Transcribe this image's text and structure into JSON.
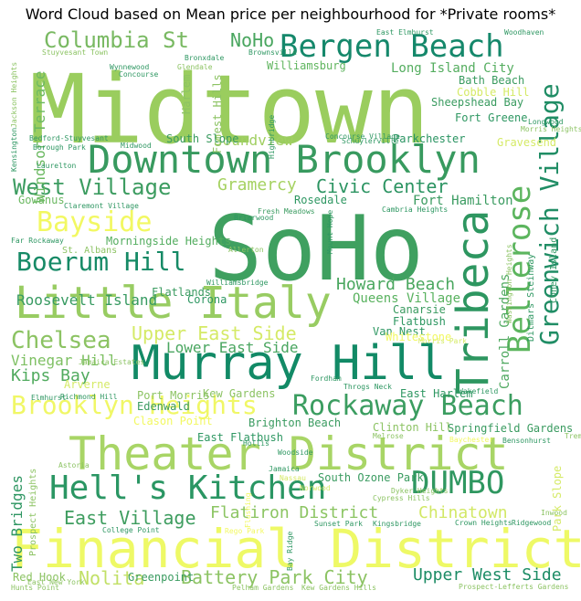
{
  "chart_data": {
    "type": "wordcloud",
    "title": "Word Cloud based on Mean price per neighbourhood for *Private rooms*",
    "colormap": "summer (green to yellow)",
    "words": [
      {
        "text": "Midtown",
        "color": "#9acd5e"
      },
      {
        "text": "SoHo",
        "color": "#3fa060"
      },
      {
        "text": "Financial District",
        "color": "#eef966"
      },
      {
        "text": "Theater District",
        "color": "#a8d566"
      },
      {
        "text": "Downtown Brooklyn",
        "color": "#389a5f"
      },
      {
        "text": "Little Italy",
        "color": "#98cc62"
      },
      {
        "text": "Murray Hill",
        "color": "#128a66"
      },
      {
        "text": "Bergen Beach",
        "color": "#15886b"
      },
      {
        "text": "Tribeca",
        "color": "#2d9660"
      },
      {
        "text": "Hell's Kitchen",
        "color": "#2a9663"
      },
      {
        "text": "Rockaway Beach",
        "color": "#3b9d60"
      },
      {
        "text": "DUMBO",
        "color": "#2f9760"
      },
      {
        "text": "Greenwich Village",
        "color": "#208d65"
      },
      {
        "text": "Bellerose",
        "color": "#5cb55e"
      },
      {
        "text": "Brooklyn Heights",
        "color": "#f0f766"
      },
      {
        "text": "Columbia St",
        "color": "#79b962"
      },
      {
        "text": "West Village",
        "color": "#3c9c60"
      },
      {
        "text": "Bayside",
        "color": "#f2f862"
      },
      {
        "text": "Boerum Hill",
        "color": "#168a66"
      },
      {
        "text": "Chelsea",
        "color": "#8cc363"
      },
      {
        "text": "Upper East Side",
        "color": "#d5ea66"
      },
      {
        "text": "Battery Park City",
        "color": "#8cc363"
      },
      {
        "text": "East Village",
        "color": "#3e9d5f"
      },
      {
        "text": "Flatiron District",
        "color": "#8cc563"
      },
      {
        "text": "Nolita",
        "color": "#c1e066"
      },
      {
        "text": "Upper West Side",
        "color": "#1c8c65"
      },
      {
        "text": "Chinatown",
        "color": "#d2e866"
      },
      {
        "text": "Civic Center",
        "color": "#2c9462"
      },
      {
        "text": "Gramercy",
        "color": "#a6d262"
      },
      {
        "text": "Howard Beach",
        "color": "#4aa75f"
      },
      {
        "text": "Roosevelt Island",
        "color": "#379a61"
      },
      {
        "text": "Soundview",
        "color": "#a1cf62"
      },
      {
        "text": "NoHo",
        "color": "#49a65f"
      },
      {
        "text": "Kips Bay",
        "color": "#51ab5f"
      },
      {
        "text": "Windsor Terrace",
        "color": "#6cb962"
      },
      {
        "text": "Two Bridges",
        "color": "#2e9662"
      },
      {
        "text": "Lower East Side",
        "color": "#4aa660"
      },
      {
        "text": "Vinegar Hill",
        "color": "#7ec063"
      },
      {
        "text": "Edgewater",
        "color": "#80c063"
      },
      {
        "text": "Long Island City",
        "color": "#54ad5f"
      },
      {
        "text": "Fort Hamilton",
        "color": "#3a9b60"
      },
      {
        "text": "Queens Village",
        "color": "#59b25f"
      },
      {
        "text": "Carroll Gardens",
        "color": "#4fa960"
      },
      {
        "text": "Morningside Heights",
        "color": "#53ad5f"
      },
      {
        "text": "Williamsburg",
        "color": "#5fb55e"
      },
      {
        "text": "Bath Beach",
        "color": "#3a9b60"
      },
      {
        "text": "Sheepshead Bay",
        "color": "#3a9b60"
      },
      {
        "text": "Fort Greene",
        "color": "#2e9762"
      },
      {
        "text": "Cobble Hill",
        "color": "#d5ea66"
      },
      {
        "text": "Parkchester",
        "color": "#2a9462"
      },
      {
        "text": "Gravesend",
        "color": "#d5ea66"
      },
      {
        "text": "Forest Hills",
        "color": "#8cc363"
      },
      {
        "text": "Harlem",
        "color": "#8cc363"
      },
      {
        "text": "South Slope",
        "color": "#3a9b60"
      },
      {
        "text": "Rosedale",
        "color": "#2e9762"
      },
      {
        "text": "Gowanus",
        "color": "#6cb962"
      },
      {
        "text": "Flatlands",
        "color": "#3a9b60"
      },
      {
        "text": "Corona",
        "color": "#2e9762"
      },
      {
        "text": "Canarsie",
        "color": "#3a9b60"
      },
      {
        "text": "Van Nest",
        "color": "#2e9762"
      },
      {
        "text": "Flatbush",
        "color": "#2e9762"
      },
      {
        "text": "Whitestone",
        "color": "#f2f862"
      },
      {
        "text": "Arverne",
        "color": "#d5ea66"
      },
      {
        "text": "Port Morris",
        "color": "#8cc363"
      },
      {
        "text": "Kew Gardens",
        "color": "#8cc363"
      },
      {
        "text": "Edenwald",
        "color": "#3a9b60"
      },
      {
        "text": "Clason Point",
        "color": "#f2f862"
      },
      {
        "text": "East Flatbush",
        "color": "#2e9762"
      },
      {
        "text": "Brighton Beach",
        "color": "#3a9b60"
      },
      {
        "text": "Clinton Hill",
        "color": "#8cc363"
      },
      {
        "text": "Springfield Gardens",
        "color": "#3a9b60"
      },
      {
        "text": "East Harlem",
        "color": "#2e9762"
      },
      {
        "text": "South Ozone Park",
        "color": "#3a9b60"
      },
      {
        "text": "Park Slope",
        "color": "#d5ea66"
      },
      {
        "text": "Prospect Heights",
        "color": "#8cc363"
      },
      {
        "text": "Red Hook",
        "color": "#8cc363"
      },
      {
        "text": "Greenpoint",
        "color": "#3a9b60"
      },
      {
        "text": "Ditmars Steinway",
        "color": "#2e9762"
      },
      {
        "text": "Coney Island",
        "color": "#2e9762"
      },
      {
        "text": "St. Albans",
        "color": "#8cc363"
      },
      {
        "text": "Fresh Meadows",
        "color": "#3a9b60"
      },
      {
        "text": "Briarwood",
        "color": "#2e9762"
      },
      {
        "text": "Cambria Heights",
        "color": "#2e9762"
      },
      {
        "text": "Throgs Neck",
        "color": "#2e9762"
      },
      {
        "text": "Fordham",
        "color": "#2e9762"
      },
      {
        "text": "Wakefield",
        "color": "#2e9762"
      },
      {
        "text": "Concourse Village",
        "color": "#2e9762"
      },
      {
        "text": "Concourse",
        "color": "#2e9762"
      },
      {
        "text": "Bedford-Stuyvesant",
        "color": "#2e9762"
      },
      {
        "text": "Borough Park",
        "color": "#2e9762"
      },
      {
        "text": "Laurelton",
        "color": "#2e9762"
      },
      {
        "text": "Kensington",
        "color": "#2e9762"
      },
      {
        "text": "Jackson Heights",
        "color": "#8cc363"
      },
      {
        "text": "Stuyvesant Town",
        "color": "#8cc363"
      },
      {
        "text": "Far Rockaway",
        "color": "#2e9762"
      },
      {
        "text": "Claremont Village",
        "color": "#2e9762"
      },
      {
        "text": "Allerton",
        "color": "#8cc363"
      },
      {
        "text": "Williamsbridge",
        "color": "#2e9762"
      },
      {
        "text": "Woodhaven",
        "color": "#2e9762"
      },
      {
        "text": "East Elmhurst",
        "color": "#2e9762"
      },
      {
        "text": "Brownsville",
        "color": "#2e9762"
      },
      {
        "text": "Bronxdale",
        "color": "#2e9762"
      },
      {
        "text": "Glendale",
        "color": "#8cc363"
      },
      {
        "text": "Highbridge",
        "color": "#2e9762"
      },
      {
        "text": "Schuylerville",
        "color": "#2e9762"
      },
      {
        "text": "Morris Heights",
        "color": "#8cc363"
      },
      {
        "text": "Longwood",
        "color": "#2e9762"
      },
      {
        "text": "Midwood",
        "color": "#2e9762"
      },
      {
        "text": "Jamaica Estates",
        "color": "#8cc363"
      },
      {
        "text": "Elmhurst",
        "color": "#2e9762"
      },
      {
        "text": "Richmond Hill",
        "color": "#2e9762"
      },
      {
        "text": "Melrose",
        "color": "#8cc363"
      },
      {
        "text": "Bensonhurst",
        "color": "#2e9762"
      },
      {
        "text": "Tremont",
        "color": "#8cc363"
      },
      {
        "text": "Baychester",
        "color": "#f2f862"
      },
      {
        "text": "Hollis",
        "color": "#2e9762"
      },
      {
        "text": "Woodside",
        "color": "#2e9762"
      },
      {
        "text": "Astoria",
        "color": "#8cc363"
      },
      {
        "text": "Jamaica",
        "color": "#2e9762"
      },
      {
        "text": "Flushing",
        "color": "#f2f862"
      },
      {
        "text": "Sunset Park",
        "color": "#2e9762"
      },
      {
        "text": "Rego Park",
        "color": "#f2f862"
      },
      {
        "text": "Bay Ridge",
        "color": "#2e9762"
      },
      {
        "text": "Kingsbridge",
        "color": "#2e9762"
      },
      {
        "text": "Crown Heights",
        "color": "#2e9762"
      },
      {
        "text": "Ridgewood",
        "color": "#2e9762"
      },
      {
        "text": "Cypress Hills",
        "color": "#8cc363"
      },
      {
        "text": "College Point",
        "color": "#2e9762"
      },
      {
        "text": "East New York",
        "color": "#8cc363"
      },
      {
        "text": "Hunts Point",
        "color": "#8cc363"
      },
      {
        "text": "Pelham Gardens",
        "color": "#8cc363"
      },
      {
        "text": "Kew Gardens Hills",
        "color": "#8cc363"
      },
      {
        "text": "Prospect-Lefferts Gardens",
        "color": "#8cc363"
      },
      {
        "text": "Nassau",
        "color": "#d5ea66"
      },
      {
        "text": "Washington Heights",
        "color": "#8cc363"
      },
      {
        "text": "Mount Hope",
        "color": "#2e9762"
      },
      {
        "text": "Morris Park",
        "color": "#d5ea66"
      },
      {
        "text": "Norwood",
        "color": "#d5ea66"
      },
      {
        "text": "Wynnewood",
        "color": "#2e9762"
      },
      {
        "text": "Dyker Heights",
        "color": "#8cc363"
      },
      {
        "text": "Inwood",
        "color": "#8cc363"
      }
    ]
  }
}
